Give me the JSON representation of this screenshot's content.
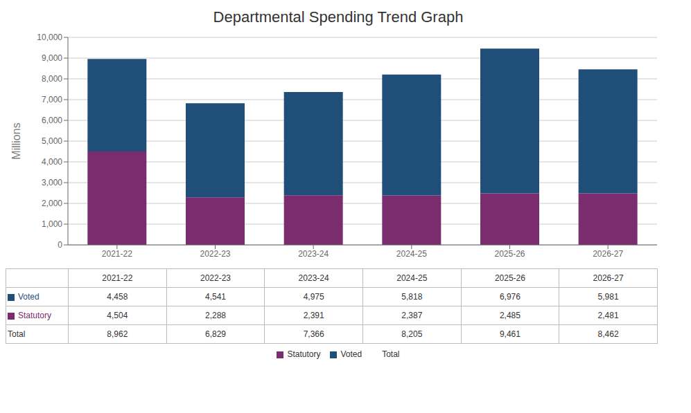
{
  "chart_data": {
    "type": "bar",
    "title": "Departmental Spending Trend Graph",
    "y_label": "Millions",
    "categories": [
      "2021-22",
      "2022-23",
      "2023-24",
      "2024-25",
      "2025-26",
      "2026-27"
    ],
    "stacked": true,
    "grid": true,
    "legend": "bottom",
    "ylim": [
      0,
      10000
    ],
    "yticks": [
      0,
      {
        "value": 1000,
        "label": "1,000"
      },
      {
        "value": 2000,
        "label": "2,000"
      },
      {
        "value": 3000,
        "label": "3,000"
      },
      {
        "value": 4000,
        "label": "4,000"
      },
      {
        "value": 5000,
        "label": "5,000"
      },
      {
        "value": 6000,
        "label": "6,000"
      },
      {
        "value": 7000,
        "label": "7,000"
      },
      {
        "value": 8000,
        "label": "8,000"
      },
      {
        "value": 9000,
        "label": "9,000"
      },
      {
        "value": 10000,
        "label": "10,000"
      }
    ],
    "series": [
      {
        "name": "Statutory",
        "color": "#7B2C6E",
        "values": [
          4504,
          2288,
          2391,
          2387,
          2485,
          2481
        ],
        "value_labels": [
          "4,504",
          "2,288",
          "2,391",
          "2,387",
          "2,485",
          "2,481"
        ]
      },
      {
        "name": "Voted",
        "color": "#1F4E79",
        "values": [
          4458,
          4541,
          4975,
          5818,
          6976,
          5981
        ],
        "value_labels": [
          "4,458",
          "4,541",
          "4,975",
          "5,818",
          "6,976",
          "5,981"
        ]
      }
    ],
    "total": {
      "name": "Total",
      "values": [
        8962,
        6829,
        7366,
        8205,
        9461,
        8462
      ],
      "value_labels": [
        "8,962",
        "6,829",
        "7,366",
        "8,205",
        "9,461",
        "8,462"
      ]
    }
  }
}
